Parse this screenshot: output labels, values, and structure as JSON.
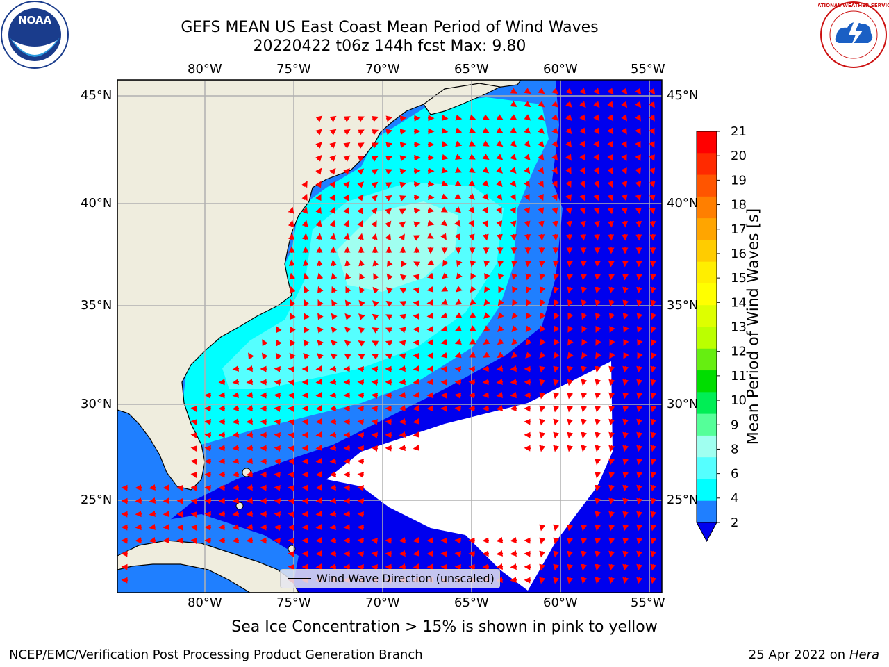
{
  "title": {
    "line1": "GEFS MEAN US East Coast Mean Period of Wind Waves",
    "line2": "20220422 t06z 144h fcst   Max: 9.80"
  },
  "logos": {
    "noaa_text": "NOAA",
    "nws_text": "NATIONAL WEATHER SERVICE"
  },
  "map": {
    "lon_labels": [
      "80°W",
      "75°W",
      "70°W",
      "65°W",
      "60°W",
      "55°W"
    ],
    "lat_labels": [
      "45°N",
      "40°N",
      "35°N",
      "30°N",
      "25°N"
    ],
    "legend_label": "Wind Wave Direction (unscaled)",
    "colors": {
      "land": "#efedde",
      "sea_deep": "#0000ee",
      "sea_2_4": "#1f7fff",
      "sea_4_6": "#00ffff",
      "sea_6_8": "#55ffff",
      "sea_8_9": "#a0fff0",
      "arrow": "#ff0000",
      "no_data": "#ffffff"
    }
  },
  "colorbar": {
    "label": "Mean Period of Wind Waves [s]",
    "ticks": [
      "21",
      "20",
      "19",
      "18",
      "17",
      "16",
      "15",
      "14",
      "13",
      "12",
      "11",
      "10",
      "9",
      "8",
      "6",
      "4",
      "2"
    ],
    "colors_top_to_bottom": [
      "#ff0000",
      "#ff2a00",
      "#ff5500",
      "#ff7f00",
      "#ffa500",
      "#ffcc00",
      "#ffee00",
      "#ffff00",
      "#ddff00",
      "#bbff00",
      "#66ee11",
      "#00dd00",
      "#00ee55",
      "#55ff99",
      "#a0fff0",
      "#55ffff",
      "#00ffff",
      "#1f7fff"
    ],
    "extend_color": "#0000ee"
  },
  "footer": {
    "ice_note": "Sea Ice Concentration > 15% is shown in pink to yellow",
    "left": "NCEP/EMC/Verification Post Processing Product Generation Branch",
    "right_date": "25 Apr 2022 on ",
    "right_machine": "Hera"
  }
}
